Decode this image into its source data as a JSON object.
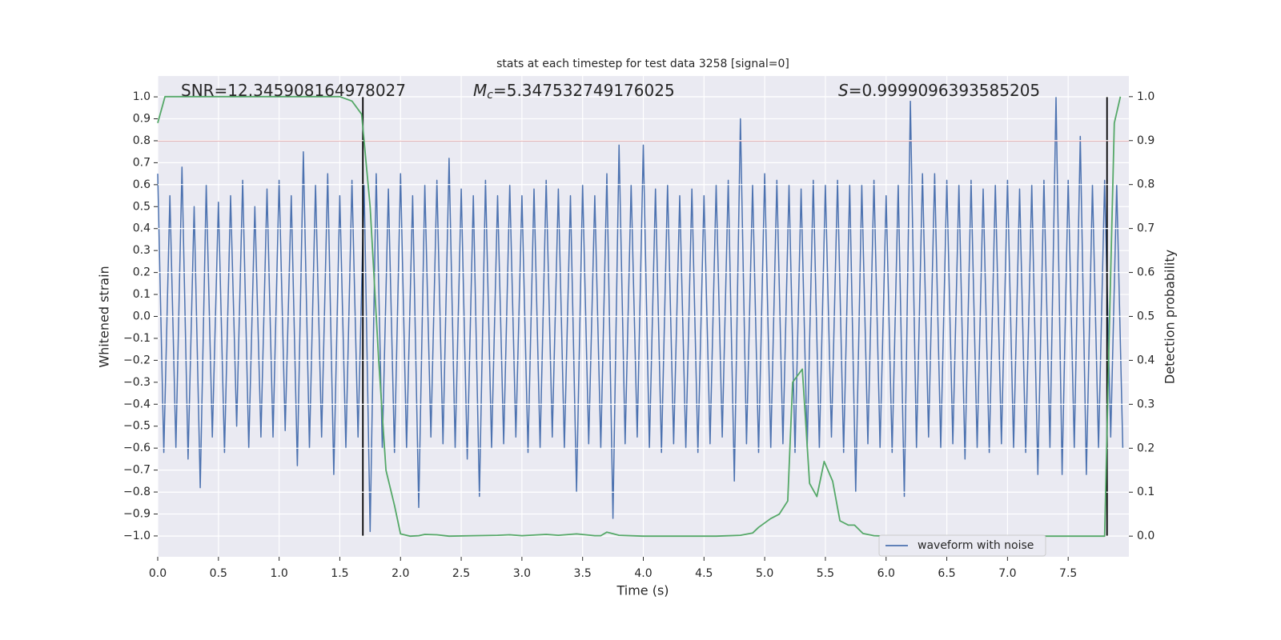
{
  "chart_data": {
    "type": "line",
    "title": "stats at each timestep for test data 3258 [signal=0]",
    "x_label": "Time (s)",
    "y_label": "Whitened strain",
    "y2_label": "Detection probability",
    "annotations": [
      {
        "text": "SNR=12.345908164978027"
      },
      {
        "symbol": "M",
        "subscript": "c",
        "text": "=5.347532749176025"
      },
      {
        "symbol": "S",
        "text": "=0.9999096393585205"
      }
    ],
    "xlim": [
      0,
      8
    ],
    "ylim": [
      -1.095,
      1.095
    ],
    "y2lim": [
      -0.047,
      1.047
    ],
    "xticks": [
      {
        "value": 0,
        "label": "0.0"
      },
      {
        "value": 0.5,
        "label": "0.5"
      },
      {
        "value": 1,
        "label": "1.0"
      },
      {
        "value": 1.5,
        "label": "1.5"
      },
      {
        "value": 2,
        "label": "2.0"
      },
      {
        "value": 2.5,
        "label": "2.5"
      },
      {
        "value": 3,
        "label": "3.0"
      },
      {
        "value": 3.5,
        "label": "3.5"
      },
      {
        "value": 4,
        "label": "4.0"
      },
      {
        "value": 4.5,
        "label": "4.5"
      },
      {
        "value": 5,
        "label": "5.0"
      },
      {
        "value": 5.5,
        "label": "5.5"
      },
      {
        "value": 6,
        "label": "6.0"
      },
      {
        "value": 6.5,
        "label": "6.5"
      },
      {
        "value": 7,
        "label": "7.0"
      },
      {
        "value": 7.5,
        "label": "7.5"
      }
    ],
    "yticks": [
      {
        "value": 1,
        "label": "1.0"
      },
      {
        "value": 0.9,
        "label": "0.9"
      },
      {
        "value": 0.8,
        "label": "0.8"
      },
      {
        "value": 0.7,
        "label": "0.7"
      },
      {
        "value": 0.6,
        "label": "0.6"
      },
      {
        "value": 0.5,
        "label": "0.5"
      },
      {
        "value": 0.4,
        "label": "0.4"
      },
      {
        "value": 0.3,
        "label": "0.3"
      },
      {
        "value": 0.2,
        "label": "0.2"
      },
      {
        "value": 0.1,
        "label": "0.1"
      },
      {
        "value": 0,
        "label": "0.0"
      },
      {
        "value": -0.1,
        "label": "−0.1"
      },
      {
        "value": -0.2,
        "label": "−0.2"
      },
      {
        "value": -0.3,
        "label": "−0.3"
      },
      {
        "value": -0.4,
        "label": "−0.4"
      },
      {
        "value": -0.5,
        "label": "−0.5"
      },
      {
        "value": -0.6,
        "label": "−0.6"
      },
      {
        "value": -0.7,
        "label": "−0.7"
      },
      {
        "value": -0.8,
        "label": "−0.8"
      },
      {
        "value": -0.9,
        "label": "−0.9"
      },
      {
        "value": -1,
        "label": "−1.0"
      }
    ],
    "y2ticks": [
      {
        "value": 1,
        "label": "1.0"
      },
      {
        "value": 0.9,
        "label": "0.9"
      },
      {
        "value": 0.8,
        "label": "0.8"
      },
      {
        "value": 0.7,
        "label": "0.7"
      },
      {
        "value": 0.6,
        "label": "0.6"
      },
      {
        "value": 0.5,
        "label": "0.5"
      },
      {
        "value": 0.4,
        "label": "0.4"
      },
      {
        "value": 0.3,
        "label": "0.3"
      },
      {
        "value": 0.2,
        "label": "0.2"
      },
      {
        "value": 0.1,
        "label": "0.1"
      },
      {
        "value": 0,
        "label": "0.0"
      }
    ],
    "grid": true,
    "legend_loc": "lower right",
    "series": [
      {
        "name": "waveform with noise",
        "color": "#4c72b0",
        "x": [
          0,
          0.05,
          0.1,
          0.15,
          0.2,
          0.25,
          0.3,
          0.35,
          0.4,
          0.45,
          0.5,
          0.55,
          0.6,
          0.65,
          0.7,
          0.75,
          0.8,
          0.85,
          0.9,
          0.95,
          1,
          1.05,
          1.1,
          1.15,
          1.2,
          1.25,
          1.3,
          1.35,
          1.4,
          1.45,
          1.5,
          1.55,
          1.6,
          1.65,
          1.7,
          1.75,
          1.8,
          1.85,
          1.9,
          1.95,
          2,
          2.05,
          2.1,
          2.15,
          2.2,
          2.25,
          2.3,
          2.35,
          2.4,
          2.45,
          2.5,
          2.55,
          2.6,
          2.65,
          2.7,
          2.75,
          2.8,
          2.85,
          2.9,
          2.95,
          3,
          3.05,
          3.1,
          3.15,
          3.2,
          3.25,
          3.3,
          3.35,
          3.4,
          3.45,
          3.5,
          3.55,
          3.6,
          3.65,
          3.7,
          3.75,
          3.8,
          3.85,
          3.9,
          3.95,
          4,
          4.05,
          4.1,
          4.15,
          4.2,
          4.25,
          4.3,
          4.35,
          4.4,
          4.45,
          4.5,
          4.55,
          4.6,
          4.65,
          4.7,
          4.75,
          4.8,
          4.85,
          4.9,
          4.95,
          5,
          5.05,
          5.1,
          5.15,
          5.2,
          5.25,
          5.3,
          5.35,
          5.4,
          5.45,
          5.5,
          5.55,
          5.6,
          5.65,
          5.7,
          5.75,
          5.8,
          5.85,
          5.9,
          5.95,
          6,
          6.05,
          6.1,
          6.15,
          6.2,
          6.25,
          6.3,
          6.35,
          6.4,
          6.45,
          6.5,
          6.55,
          6.6,
          6.65,
          6.7,
          6.75,
          6.8,
          6.85,
          6.9,
          6.95,
          7,
          7.05,
          7.1,
          7.15,
          7.2,
          7.25,
          7.3,
          7.35,
          7.4,
          7.45,
          7.5,
          7.55,
          7.6,
          7.65,
          7.7,
          7.75,
          7.8,
          7.85,
          7.9,
          7.95
        ],
        "values": [
          0.65,
          -0.62,
          0.55,
          -0.6,
          0.68,
          -0.65,
          0.5,
          -0.78,
          0.6,
          -0.55,
          0.52,
          -0.62,
          0.55,
          -0.5,
          0.62,
          -0.6,
          0.5,
          -0.55,
          0.58,
          -0.55,
          0.62,
          -0.52,
          0.55,
          -0.68,
          0.75,
          -0.6,
          0.6,
          -0.55,
          0.65,
          -0.72,
          0.55,
          -0.6,
          0.62,
          -0.55,
          0.6,
          -0.98,
          0.65,
          -0.6,
          0.58,
          -0.62,
          0.65,
          -0.6,
          0.55,
          -0.87,
          0.6,
          -0.55,
          0.62,
          -0.58,
          0.72,
          -0.6,
          0.58,
          -0.65,
          0.55,
          -0.82,
          0.62,
          -0.6,
          0.55,
          -0.58,
          0.6,
          -0.55,
          0.55,
          -0.62,
          0.58,
          -0.6,
          0.62,
          -0.55,
          0.58,
          -0.6,
          0.55,
          -0.8,
          0.6,
          -0.58,
          0.55,
          -0.6,
          0.65,
          -0.92,
          0.78,
          -0.58,
          0.6,
          -0.55,
          0.78,
          -0.6,
          0.58,
          -0.62,
          0.6,
          -0.58,
          0.55,
          -0.6,
          0.58,
          -0.62,
          0.55,
          -0.58,
          0.6,
          -0.55,
          0.62,
          -0.75,
          0.9,
          -0.58,
          0.6,
          -0.62,
          0.65,
          -0.6,
          0.62,
          -0.58,
          0.6,
          -0.62,
          0.58,
          -0.6,
          0.62,
          -0.6,
          0.6,
          -0.55,
          0.62,
          -0.62,
          0.6,
          -0.8,
          0.6,
          -0.58,
          0.62,
          -0.6,
          0.55,
          -0.62,
          0.6,
          -0.82,
          0.98,
          -0.6,
          0.65,
          -0.55,
          0.65,
          -0.6,
          0.62,
          -0.58,
          0.6,
          -0.65,
          0.62,
          -0.6,
          0.58,
          -0.62,
          0.6,
          -0.58,
          0.62,
          -0.6,
          0.58,
          -0.62,
          0.6,
          -0.72,
          0.62,
          -0.6,
          1.0,
          -0.72,
          0.62,
          -0.6,
          0.82,
          -0.72,
          0.6,
          -0.6,
          0.62,
          -0.55,
          0.6,
          -0.6
        ]
      },
      {
        "color": "#55a868",
        "axis": "y2",
        "x": [
          0,
          0.06,
          0.5,
          1,
          1.5,
          1.6,
          1.68,
          1.75,
          1.82,
          1.88,
          1.95,
          2,
          2.08,
          2.15,
          2.2,
          2.3,
          2.4,
          2.6,
          2.8,
          2.9,
          3,
          3.2,
          3.3,
          3.45,
          3.6,
          3.65,
          3.7,
          3.8,
          4,
          4.6,
          4.8,
          4.9,
          4.95,
          5.05,
          5.12,
          5.19,
          5.23,
          5.31,
          5.37,
          5.43,
          5.49,
          5.56,
          5.62,
          5.69,
          5.74,
          5.81,
          5.9,
          6,
          7.5,
          7.8,
          7.84,
          7.88,
          7.93
        ],
        "values": [
          0.94,
          1,
          1,
          1,
          1,
          0.99,
          0.96,
          0.75,
          0.4,
          0.15,
          0.07,
          0.005,
          0,
          0.001,
          0.004,
          0.003,
          0,
          0.001,
          0.002,
          0.003,
          0.001,
          0.004,
          0.002,
          0.005,
          0.001,
          0.001,
          0.009,
          0.002,
          0,
          0,
          0.002,
          0.007,
          0.02,
          0.04,
          0.05,
          0.08,
          0.35,
          0.38,
          0.12,
          0.09,
          0.17,
          0.125,
          0.035,
          0.025,
          0.025,
          0.006,
          0.001,
          0,
          0,
          0,
          0.48,
          0.94,
          1
        ]
      }
    ],
    "hlines": [
      {
        "y": 0.8,
        "color": "#c44e52"
      }
    ],
    "vlines": [
      {
        "x": 1.69,
        "ymin": -1,
        "ymax": 1,
        "color": "#000000"
      },
      {
        "x": 7.82,
        "ymin": -1,
        "ymax": 1,
        "color": "#000000"
      }
    ]
  }
}
